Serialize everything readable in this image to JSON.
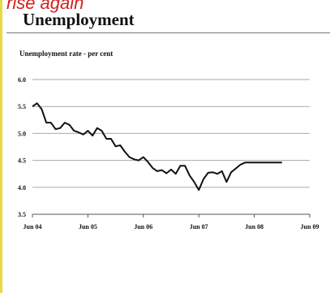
{
  "header": {
    "caption": "rise again",
    "title": "Unemployment"
  },
  "chart_data": {
    "type": "line",
    "title": "Unemployment",
    "subtitle": "Unemployment rate - per cent",
    "xlabel": "",
    "ylabel": "",
    "x_ticks": [
      "Jun 04",
      "Jun 05",
      "Jun 06",
      "Jun 07",
      "Jun 08",
      "Jun 09"
    ],
    "y_ticks": [
      "3.5",
      "4.0",
      "4.5",
      "5.0",
      "5.5",
      "6.0"
    ],
    "ylim": [
      3.5,
      6.0
    ],
    "xlim": [
      "2004-06",
      "2009-06"
    ],
    "grid": true,
    "series": [
      {
        "color": "#111111",
        "x": [
          "2004-06",
          "2004-07",
          "2004-08",
          "2004-09",
          "2004-10",
          "2004-11",
          "2004-12",
          "2005-01",
          "2005-02",
          "2005-03",
          "2005-04",
          "2005-05",
          "2005-06",
          "2005-07",
          "2005-08",
          "2005-09",
          "2005-10",
          "2005-11",
          "2005-12",
          "2006-01",
          "2006-02",
          "2006-03",
          "2006-04",
          "2006-05",
          "2006-06",
          "2006-07",
          "2006-08",
          "2006-09",
          "2006-10",
          "2006-11",
          "2006-12",
          "2007-01",
          "2007-02",
          "2007-03",
          "2007-04",
          "2007-05",
          "2007-06",
          "2007-07",
          "2007-08",
          "2007-09",
          "2007-10",
          "2007-11",
          "2007-12",
          "2008-01",
          "2008-02",
          "2008-03",
          "2008-04",
          "2008-05",
          "2008-06",
          "2008-07",
          "2008-08",
          "2008-09",
          "2008-10",
          "2008-11",
          "2008-12"
        ],
        "values": [
          5.5,
          5.56,
          5.45,
          5.2,
          5.2,
          5.08,
          5.1,
          5.2,
          5.16,
          5.05,
          5.02,
          4.98,
          5.05,
          4.96,
          5.1,
          5.05,
          4.9,
          4.9,
          4.76,
          4.78,
          4.66,
          4.56,
          4.52,
          4.5,
          4.56,
          4.47,
          4.36,
          4.3,
          4.32,
          4.26,
          4.33,
          4.25,
          4.4,
          4.4,
          4.22,
          4.1,
          3.95,
          4.15,
          4.27,
          4.28,
          4.25,
          4.3,
          4.1,
          4.28,
          4.35,
          4.42,
          4.46,
          4.46,
          4.46,
          4.46,
          4.46,
          4.46,
          4.46,
          4.46,
          4.46
        ]
      }
    ]
  }
}
